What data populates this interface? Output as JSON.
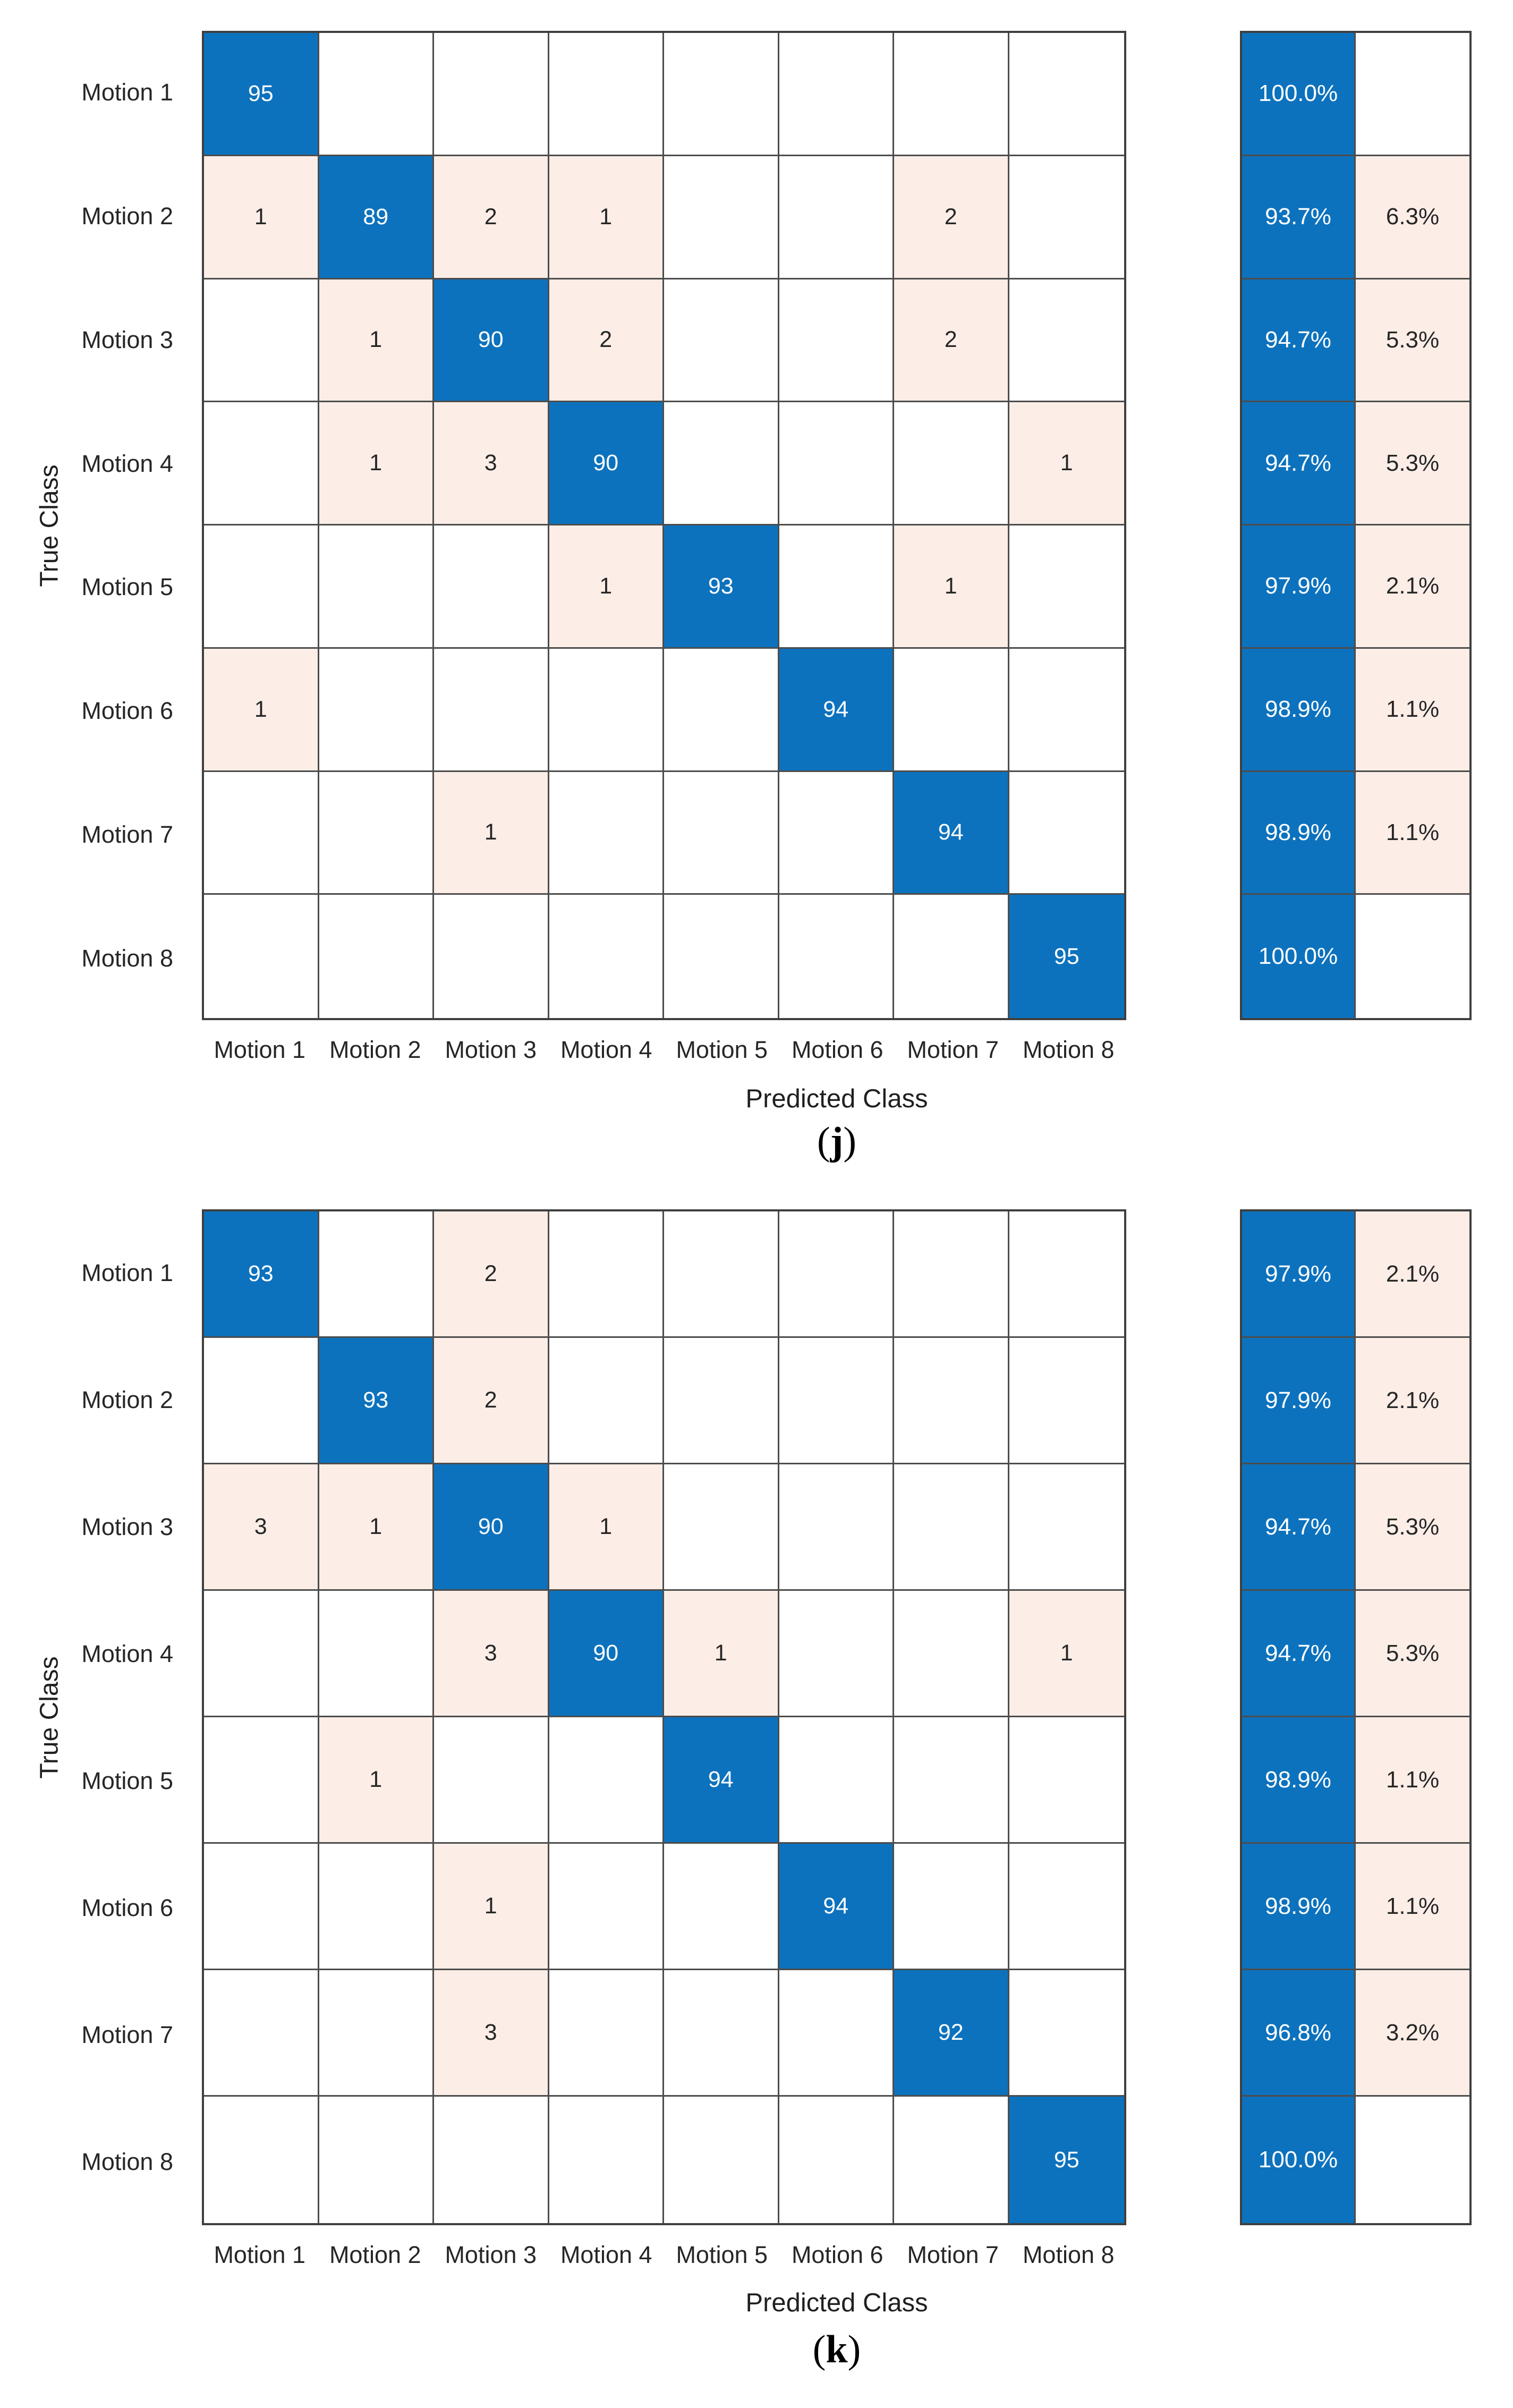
{
  "colors": {
    "diagonal_blue": "#0d72bd",
    "offdiagonal_pink": "#fceee7",
    "grid_line": "#4c4c4c",
    "grid_line_dark": "#3f3f3f",
    "text_dark": "#262626",
    "text_on_blue": "#ffffff"
  },
  "chart_data": [
    {
      "id": "j",
      "type": "heatmap",
      "subtype": "confusion-matrix",
      "caption": {
        "open": "(",
        "letter": "j",
        "close": ")"
      },
      "xlabel": "Predicted Class",
      "ylabel": "True Class",
      "classes": [
        "Motion 1",
        "Motion 2",
        "Motion 3",
        "Motion 4",
        "Motion 5",
        "Motion 6",
        "Motion 7",
        "Motion 8"
      ],
      "matrix": [
        [
          95,
          0,
          0,
          0,
          0,
          0,
          0,
          0
        ],
        [
          1,
          89,
          2,
          1,
          0,
          0,
          2,
          0
        ],
        [
          0,
          1,
          90,
          2,
          0,
          0,
          2,
          0
        ],
        [
          0,
          1,
          3,
          90,
          0,
          0,
          0,
          1
        ],
        [
          0,
          0,
          0,
          1,
          93,
          0,
          1,
          0
        ],
        [
          1,
          0,
          0,
          0,
          0,
          94,
          0,
          0
        ],
        [
          0,
          0,
          1,
          0,
          0,
          0,
          94,
          0
        ],
        [
          0,
          0,
          0,
          0,
          0,
          0,
          0,
          95
        ]
      ],
      "summary": {
        "recall": [
          "100.0%",
          "93.7%",
          "94.7%",
          "94.7%",
          "97.9%",
          "98.9%",
          "98.9%",
          "100.0%"
        ],
        "miss": [
          "",
          "6.3%",
          "5.3%",
          "5.3%",
          "2.1%",
          "1.1%",
          "1.1%",
          ""
        ]
      }
    },
    {
      "id": "k",
      "type": "heatmap",
      "subtype": "confusion-matrix",
      "caption": {
        "open": "(",
        "letter": "k",
        "close": ")"
      },
      "xlabel": "Predicted Class",
      "ylabel": "True Class",
      "classes": [
        "Motion 1",
        "Motion 2",
        "Motion 3",
        "Motion 4",
        "Motion 5",
        "Motion 6",
        "Motion 7",
        "Motion 8"
      ],
      "matrix": [
        [
          93,
          0,
          2,
          0,
          0,
          0,
          0,
          0
        ],
        [
          0,
          93,
          2,
          0,
          0,
          0,
          0,
          0
        ],
        [
          3,
          1,
          90,
          1,
          0,
          0,
          0,
          0
        ],
        [
          0,
          0,
          3,
          90,
          1,
          0,
          0,
          1
        ],
        [
          0,
          1,
          0,
          0,
          94,
          0,
          0,
          0
        ],
        [
          0,
          0,
          1,
          0,
          0,
          94,
          0,
          0
        ],
        [
          0,
          0,
          3,
          0,
          0,
          0,
          92,
          0
        ],
        [
          0,
          0,
          0,
          0,
          0,
          0,
          0,
          95
        ]
      ],
      "summary": {
        "recall": [
          "97.9%",
          "97.9%",
          "94.7%",
          "94.7%",
          "98.9%",
          "98.9%",
          "96.8%",
          "100.0%"
        ],
        "miss": [
          "2.1%",
          "2.1%",
          "5.3%",
          "5.3%",
          "1.1%",
          "1.1%",
          "3.2%",
          ""
        ]
      }
    }
  ]
}
